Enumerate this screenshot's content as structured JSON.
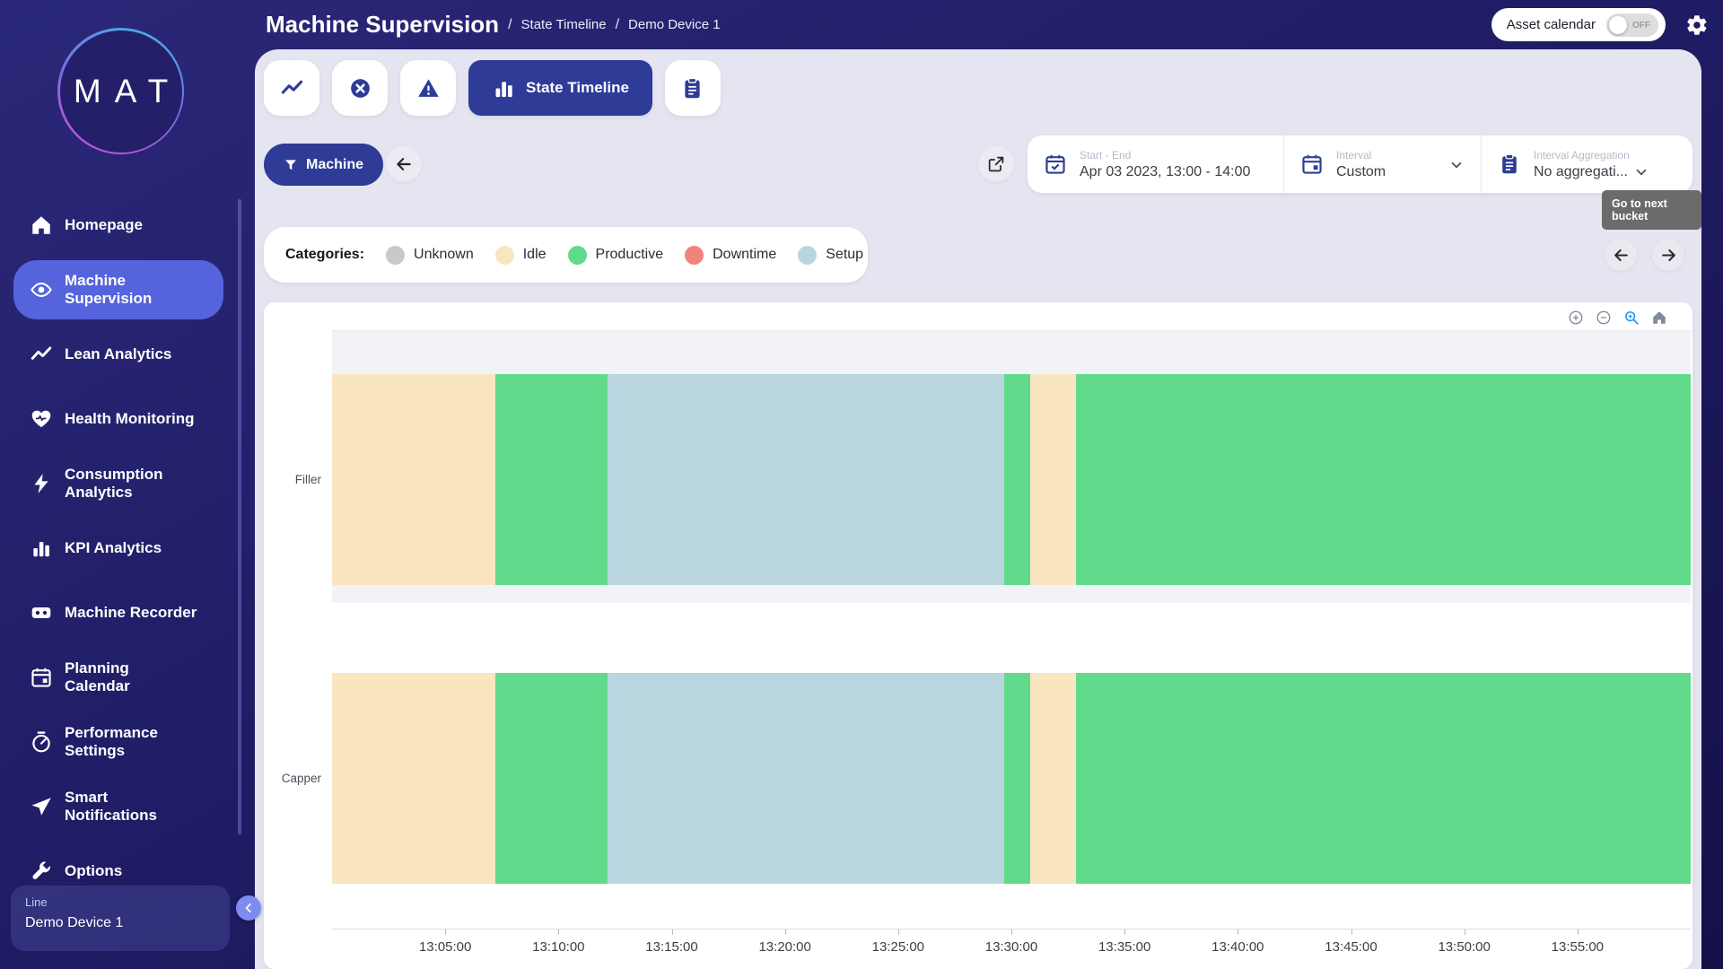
{
  "app": {
    "logo_text": "MAT"
  },
  "header": {
    "title": "Machine Supervision",
    "sep": "/",
    "crumbs": [
      "State Timeline",
      "Demo Device 1"
    ],
    "asset_calendar": {
      "label": "Asset calendar",
      "state": "OFF"
    }
  },
  "sidebar": {
    "items": [
      {
        "label": "Homepage",
        "icon": "home",
        "active": false
      },
      {
        "label": "Machine\nSupervision",
        "icon": "eye",
        "active": true
      },
      {
        "label": "Lean Analytics",
        "icon": "trend",
        "active": false
      },
      {
        "label": "Health Monitoring",
        "icon": "heart",
        "active": false
      },
      {
        "label": "Consumption\nAnalytics",
        "icon": "bolt",
        "active": false
      },
      {
        "label": "KPI Analytics",
        "icon": "bars",
        "active": false
      },
      {
        "label": "Machine Recorder",
        "icon": "recorder",
        "active": false
      },
      {
        "label": "Planning\nCalendar",
        "icon": "calendar",
        "active": false
      },
      {
        "label": "Performance\nSettings",
        "icon": "gauge",
        "active": false
      },
      {
        "label": "Smart\nNotifications",
        "icon": "send",
        "active": false
      },
      {
        "label": "Options",
        "icon": "wrench",
        "active": false
      }
    ],
    "device_card": {
      "label": "Line",
      "value": "Demo Device 1"
    }
  },
  "tabs": {
    "buttons": [
      {
        "name": "trend-tab",
        "icon": "trend",
        "active": false
      },
      {
        "name": "stops-tab",
        "icon": "x-circle",
        "active": false
      },
      {
        "name": "alerts-tab",
        "icon": "warning",
        "active": false
      },
      {
        "name": "state-timeline-tab",
        "icon": "bars",
        "label": "State Timeline",
        "active": true
      },
      {
        "name": "report-tab",
        "icon": "clipboard",
        "active": false
      }
    ]
  },
  "filter_bar": {
    "machine_button": "Machine",
    "pickers": {
      "start_end": {
        "label": "Start - End",
        "value": "Apr 03 2023, 13:00 - 14:00"
      },
      "interval": {
        "label": "Interval",
        "value": "Custom"
      },
      "aggregation": {
        "label": "Interval Aggregation",
        "value": "No aggregati..."
      }
    },
    "tooltip": "Go to next bucket"
  },
  "legend": {
    "title": "Categories:",
    "items": [
      {
        "label": "Unknown",
        "color": "#c9c9c9"
      },
      {
        "label": "Idle",
        "color": "#fae5c1"
      },
      {
        "label": "Productive",
        "color": "#62da8c"
      },
      {
        "label": "Downtime",
        "color": "#f2837b"
      },
      {
        "label": "Setup",
        "color": "#b9d6e0"
      }
    ]
  },
  "chart_data": {
    "type": "state-timeline",
    "x_range": [
      "13:00:00",
      "14:00:00"
    ],
    "x_ticks": [
      "13:05:00",
      "13:10:00",
      "13:15:00",
      "13:20:00",
      "13:25:00",
      "13:30:00",
      "13:35:00",
      "13:40:00",
      "13:45:00",
      "13:50:00",
      "13:55:00"
    ],
    "state_colors": {
      "Unknown": "#c9c9c9",
      "Idle": "#fae5c1",
      "Productive": "#62da8c",
      "Downtime": "#f2837b",
      "Setup": "#b9d6e0"
    },
    "rows": [
      {
        "name": "Filler",
        "segments": [
          {
            "state": "Idle",
            "start": "13:00:00",
            "end": "13:07:10",
            "start_min": 0,
            "end_min": 7.2
          },
          {
            "state": "Productive",
            "start": "13:07:10",
            "end": "13:12:10",
            "start_min": 7.2,
            "end_min": 12.15
          },
          {
            "state": "Setup",
            "start": "13:12:10",
            "end": "13:29:40",
            "start_min": 12.15,
            "end_min": 29.7
          },
          {
            "state": "Productive",
            "start": "13:29:40",
            "end": "13:30:50",
            "start_min": 29.7,
            "end_min": 30.85
          },
          {
            "state": "Idle",
            "start": "13:30:50",
            "end": "13:32:50",
            "start_min": 30.85,
            "end_min": 32.85
          },
          {
            "state": "Productive",
            "start": "13:32:50",
            "end": "14:00:00",
            "start_min": 32.85,
            "end_min": 60
          }
        ]
      },
      {
        "name": "Capper",
        "segments": [
          {
            "state": "Idle",
            "start": "13:00:00",
            "end": "13:07:10",
            "start_min": 0,
            "end_min": 7.2
          },
          {
            "state": "Productive",
            "start": "13:07:10",
            "end": "13:12:10",
            "start_min": 7.2,
            "end_min": 12.15
          },
          {
            "state": "Setup",
            "start": "13:12:10",
            "end": "13:29:40",
            "start_min": 12.15,
            "end_min": 29.7
          },
          {
            "state": "Productive",
            "start": "13:29:40",
            "end": "13:30:50",
            "start_min": 29.7,
            "end_min": 30.85
          },
          {
            "state": "Idle",
            "start": "13:30:50",
            "end": "13:32:50",
            "start_min": 30.85,
            "end_min": 32.85
          },
          {
            "state": "Productive",
            "start": "13:32:50",
            "end": "14:00:00",
            "start_min": 32.85,
            "end_min": 60
          }
        ]
      }
    ]
  }
}
